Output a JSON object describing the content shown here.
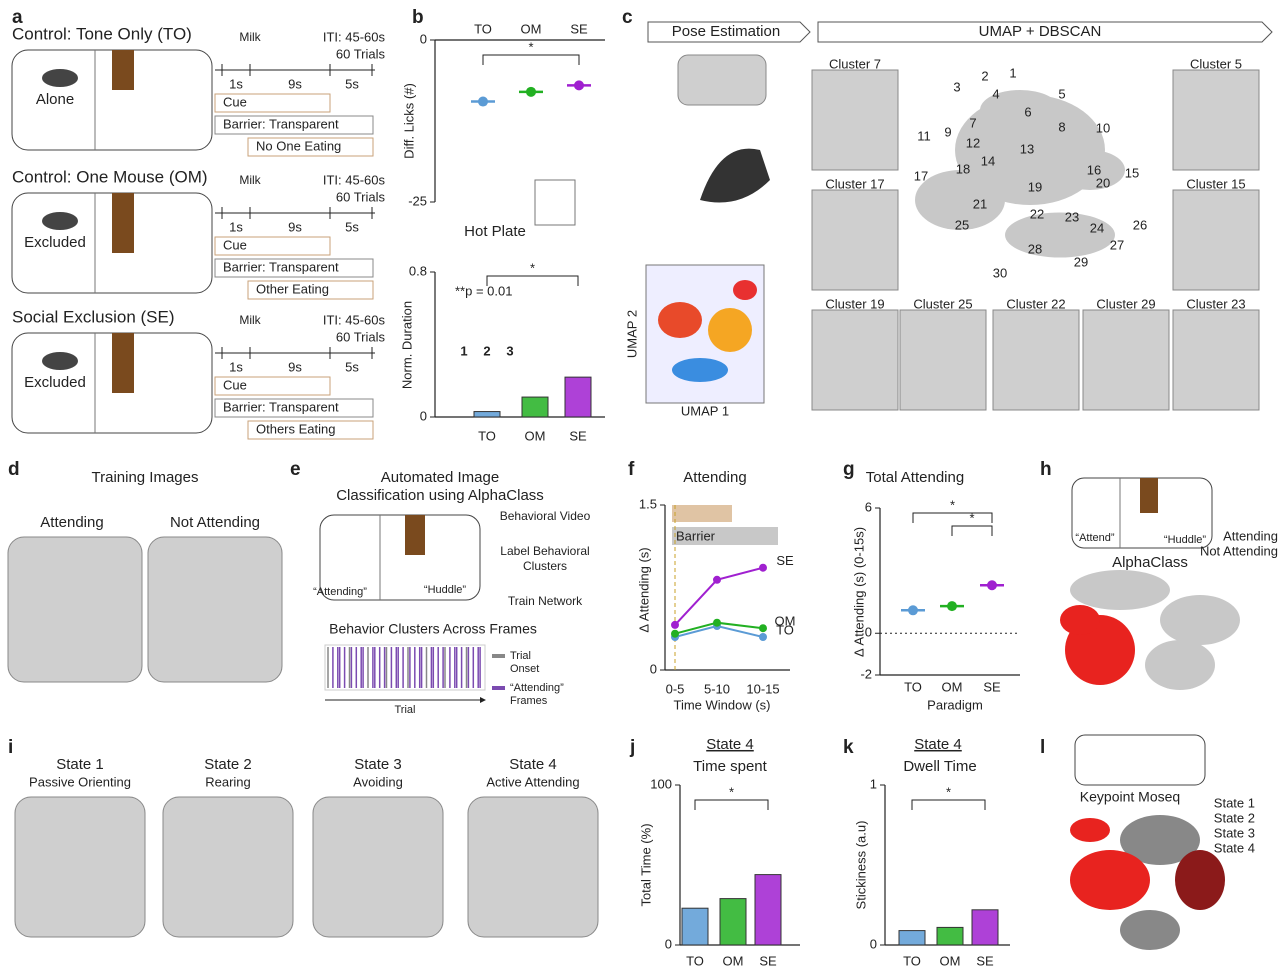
{
  "figure": {
    "panel_labels": [
      "a",
      "b",
      "c",
      "d",
      "e",
      "f",
      "g",
      "h",
      "i",
      "j",
      "k",
      "l"
    ],
    "a": {
      "rows": [
        {
          "title": "Control: Tone Only (TO)",
          "color": "#5b9bd5",
          "mouse": "Alone",
          "milk": "Milk",
          "iti": "ITI: 45-60s",
          "trials": "60 Trials",
          "intervals": [
            "1s",
            "9s",
            "5s"
          ],
          "bars": [
            "Cue",
            "Barrier: Transparent",
            "No One Eating"
          ]
        },
        {
          "title": "Control: One Mouse (OM)",
          "color": "#22b022",
          "mouse": "Excluded",
          "milk": "Milk",
          "iti": "ITI: 45-60s",
          "trials": "60 Trials",
          "intervals": [
            "1s",
            "9s",
            "5s"
          ],
          "bars": [
            "Cue",
            "Barrier: Transparent",
            "Other Eating"
          ]
        },
        {
          "title": "Social Exclusion (SE)",
          "color": "#8e44ad",
          "mouse": "Excluded",
          "milk": "Milk",
          "iti": "ITI: 45-60s",
          "trials": "60 Trials",
          "intervals": [
            "1s",
            "9s",
            "5s"
          ],
          "bars": [
            "Cue",
            "Barrier: Transparent",
            "Others Eating"
          ]
        }
      ]
    },
    "b": {
      "inset_label": "Hot Plate"
    },
    "c": {
      "headers": [
        "Pose Estimation",
        "UMAP + DBSCAN"
      ],
      "umap_x": "UMAP 1",
      "umap_y": "UMAP 2",
      "clusters": [
        "Cluster 7",
        "Cluster 5",
        "Cluster 17",
        "Cluster 15",
        "Cluster 19",
        "Cluster 25",
        "Cluster 22",
        "Cluster 29",
        "Cluster 23"
      ],
      "cluster_numbers": [
        1,
        2,
        3,
        4,
        5,
        6,
        7,
        8,
        9,
        10,
        11,
        12,
        13,
        14,
        15,
        16,
        17,
        18,
        19,
        20,
        21,
        22,
        23,
        24,
        25,
        26,
        27,
        28,
        29,
        30
      ]
    },
    "d": {
      "title": "Training Images",
      "labels": [
        "Attending",
        "Not Attending"
      ]
    },
    "e": {
      "title": [
        "Automated Image",
        "Classification using AlphaClass"
      ],
      "arena_labels": [
        "“Attending”",
        "“Huddle”"
      ],
      "steps": [
        [
          "Behavioral Video"
        ],
        [
          "Label Behavioral",
          "Clusters"
        ],
        [
          "Train Network"
        ]
      ],
      "raster_title": "Behavior Clusters Across Frames",
      "legend": [
        {
          "lines": [
            "Trial",
            "Onset"
          ],
          "color": "#888888"
        },
        {
          "lines": [
            "“Attending”",
            "Frames"
          ],
          "color": "#7b4bb0"
        }
      ],
      "x_label": "Trial"
    },
    "h": {
      "arena_labels": [
        "“Attend”",
        "“Huddle”"
      ],
      "title": "AlphaClass",
      "legend": [
        {
          "name": "Attending",
          "color": "#e8231f"
        },
        {
          "name": "Not Attending",
          "color": "#b0b0b0"
        }
      ]
    },
    "i": {
      "states": [
        {
          "name": "State 1",
          "description": "Passive Orienting",
          "color": "#8b1a1a"
        },
        {
          "name": "State 2",
          "description": "Rearing",
          "color": "#555555"
        },
        {
          "name": "State 3",
          "description": "Avoiding",
          "color": "#999999"
        },
        {
          "name": "State 4",
          "description": "Active Attending",
          "color": "#e8231f"
        }
      ]
    },
    "l": {
      "title": "Keypoint Moseq",
      "legend": [
        {
          "name": "State 1",
          "color": "#8b1a1a"
        },
        {
          "name": "State 2",
          "color": "#555555"
        },
        {
          "name": "State 3",
          "color": "#999999"
        },
        {
          "name": "State 4",
          "color": "#e8231f"
        }
      ]
    }
  },
  "chart_data": [
    {
      "type": "scatter",
      "categories": [
        "TO",
        "OM",
        "SE"
      ],
      "x_axis": "top",
      "y_label": "Diff. Licks (#)",
      "ylim": [
        -25,
        0
      ],
      "yticks": [
        0,
        -25
      ],
      "colors": [
        "#5b9bd5",
        "#22b022",
        "#a020d0"
      ],
      "values": [
        -9.5,
        -8,
        -7
      ],
      "significance": [
        "*"
      ]
    },
    {
      "type": "bar",
      "categories": [
        "TO",
        "OM",
        "SE"
      ],
      "y_label": "Norm. Duration",
      "ylim": [
        0,
        0.8
      ],
      "yticks": [
        0,
        0.8
      ],
      "colors": [
        "#5b9bd5",
        "#22b022",
        "#a020d0"
      ],
      "values": [
        0.03,
        0.11,
        0.22
      ],
      "significance": [
        "*"
      ],
      "annotation": "**p = 0.01",
      "inset_labels": [
        "1",
        "2",
        "3"
      ]
    },
    {
      "type": "line",
      "title": "Attending",
      "categories": [
        "0-5",
        "5-10",
        "10-15"
      ],
      "x_label": "Time Window (s)",
      "y_label": "Δ Attending (s)",
      "ylim": [
        0,
        1.5
      ],
      "yticks": [
        0,
        1.5
      ],
      "annotation": "Barrier",
      "series": [
        {
          "name": "TO",
          "color": "#5b9bd5",
          "values": [
            0.3,
            0.4,
            0.3
          ]
        },
        {
          "name": "OM",
          "color": "#22b022",
          "values": [
            0.33,
            0.43,
            0.38
          ]
        },
        {
          "name": "SE",
          "color": "#a020d0",
          "values": [
            0.41,
            0.82,
            0.93
          ]
        }
      ]
    },
    {
      "type": "scatter",
      "title": "Total Attending",
      "categories": [
        "TO",
        "OM",
        "SE"
      ],
      "x_label": "Paradigm",
      "y_label": "Δ Attending (s) (0-15s)",
      "ylim": [
        -2,
        6
      ],
      "yticks": [
        -2,
        0,
        6
      ],
      "zero_line": true,
      "colors": [
        "#5b9bd5",
        "#22b022",
        "#a020d0"
      ],
      "values": [
        1.1,
        1.3,
        2.3
      ],
      "significance": [
        "*",
        "*"
      ]
    },
    {
      "type": "bar",
      "header": "State 4",
      "title": "Time spent",
      "categories": [
        "TO",
        "OM",
        "SE"
      ],
      "y_label": "Total Time (%)",
      "ylim": [
        0,
        100
      ],
      "yticks": [
        0,
        100
      ],
      "colors": [
        "#5b9bd5",
        "#22b022",
        "#a020d0"
      ],
      "values": [
        23,
        29,
        44
      ],
      "significance": [
        "*"
      ]
    },
    {
      "type": "bar",
      "header": "State 4",
      "title": "Dwell Time",
      "categories": [
        "TO",
        "OM",
        "SE"
      ],
      "y_label": "Stickiness (a.u)",
      "ylim": [
        0,
        1
      ],
      "yticks": [
        0,
        1
      ],
      "colors": [
        "#5b9bd5",
        "#22b022",
        "#a020d0"
      ],
      "values": [
        0.09,
        0.11,
        0.22
      ],
      "significance": [
        "*"
      ]
    }
  ]
}
